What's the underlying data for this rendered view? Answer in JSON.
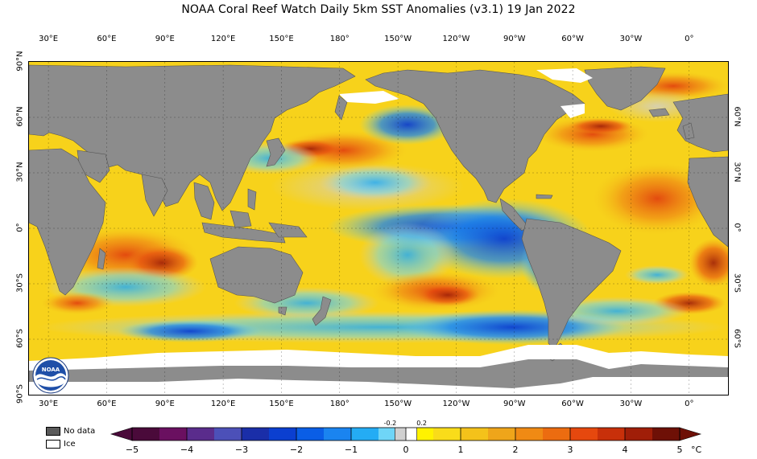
{
  "title": "NOAA Coral Reef Watch Daily 5km SST Anomalies  (v3.1)   19 Jan 2022",
  "map": {
    "projection": "equirectangular",
    "lon_start_deg": 20,
    "lon_labels": [
      {
        "text": "30°E",
        "lon": 30
      },
      {
        "text": "60°E",
        "lon": 60
      },
      {
        "text": "90°E",
        "lon": 90
      },
      {
        "text": "120°E",
        "lon": 120
      },
      {
        "text": "150°E",
        "lon": 150
      },
      {
        "text": "180°",
        "lon": 180
      },
      {
        "text": "150°W",
        "lon": 210
      },
      {
        "text": "120°W",
        "lon": 240
      },
      {
        "text": "90°W",
        "lon": 270
      },
      {
        "text": "60°W",
        "lon": 300
      },
      {
        "text": "30°W",
        "lon": 330
      },
      {
        "text": "0°",
        "lon": 360
      }
    ],
    "lat_labels_left": [
      {
        "text": "90°N",
        "lat": 90
      },
      {
        "text": "60°N",
        "lat": 60
      },
      {
        "text": "30°N",
        "lat": 30
      },
      {
        "text": "0°",
        "lat": 0
      },
      {
        "text": "30°S",
        "lat": -30
      },
      {
        "text": "60°S",
        "lat": -60
      },
      {
        "text": "90°S",
        "lat": -90
      }
    ],
    "lat_labels_right": [
      {
        "text": "60°N",
        "lat": 60
      },
      {
        "text": "30°N",
        "lat": 30
      },
      {
        "text": "0°",
        "lat": 0
      },
      {
        "text": "30°S",
        "lat": -30
      },
      {
        "text": "60°S",
        "lat": -60
      }
    ],
    "colors": {
      "land": "#8c8c8c",
      "ice": "#ffffff",
      "ocean_base": "#f7d21b"
    }
  },
  "logo": {
    "text": "NOAA"
  },
  "legend_keys": [
    {
      "label": "No data",
      "color": "#5a5a5a"
    },
    {
      "label": "Ice",
      "color": "#ffffff"
    }
  ],
  "colorbar": {
    "min": -5,
    "max": 5,
    "unit": "°C",
    "ticks": [
      "−5",
      "−4",
      "−3",
      "−2",
      "−1",
      "0",
      "1",
      "2",
      "3",
      "4",
      "5"
    ],
    "tick_values": [
      -5,
      -4,
      -3,
      -2,
      -1,
      0,
      1,
      2,
      3,
      4,
      5
    ],
    "small_ticks": [
      {
        "text": "-0.2",
        "value": -0.2
      },
      {
        "text": "0.2",
        "value": 0.2
      }
    ],
    "segments": [
      {
        "from": -5,
        "to": -4.5,
        "color": "#4a0a3a"
      },
      {
        "from": -4.5,
        "to": -4,
        "color": "#6a1060"
      },
      {
        "from": -4,
        "to": -3.5,
        "color": "#5a2c8c"
      },
      {
        "from": -3.5,
        "to": -3,
        "color": "#4c50b8"
      },
      {
        "from": -3,
        "to": -2.5,
        "color": "#1a2ea8"
      },
      {
        "from": -2.5,
        "to": -2,
        "color": "#0b3fd0"
      },
      {
        "from": -2,
        "to": -1.5,
        "color": "#0a5ee6"
      },
      {
        "from": -1.5,
        "to": -1,
        "color": "#1a84f0"
      },
      {
        "from": -1,
        "to": -0.5,
        "color": "#24acf4"
      },
      {
        "from": -0.5,
        "to": -0.2,
        "color": "#6fd5f7"
      },
      {
        "from": -0.2,
        "to": 0,
        "color": "#d0d0d0"
      },
      {
        "from": 0,
        "to": 0.2,
        "color": "#ffffff"
      },
      {
        "from": 0.2,
        "to": 0.5,
        "color": "#fff200"
      },
      {
        "from": 0.5,
        "to": 1,
        "color": "#f9dc1a"
      },
      {
        "from": 1,
        "to": 1.5,
        "color": "#f4c21a"
      },
      {
        "from": 1.5,
        "to": 2,
        "color": "#efa51a"
      },
      {
        "from": 2,
        "to": 2.5,
        "color": "#f08a14"
      },
      {
        "from": 2.5,
        "to": 3,
        "color": "#ec6c10"
      },
      {
        "from": 3,
        "to": 3.5,
        "color": "#e6480e"
      },
      {
        "from": 3.5,
        "to": 4,
        "color": "#c8300a"
      },
      {
        "from": 4,
        "to": 4.5,
        "color": "#a01e08"
      },
      {
        "from": 4.5,
        "to": 5,
        "color": "#6e1006"
      }
    ]
  }
}
